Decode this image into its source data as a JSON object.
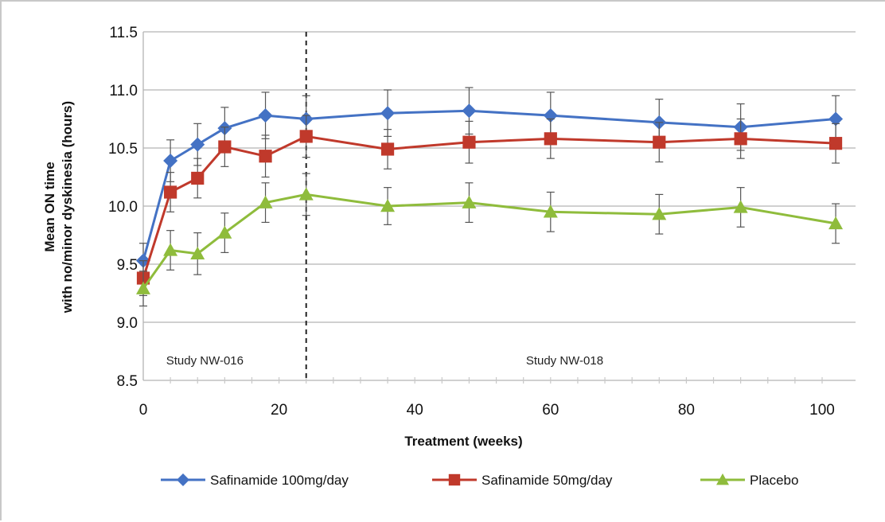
{
  "chart_data": {
    "type": "line",
    "xlabel": "Treatment (weeks)",
    "ylabel_line1": "Mean ON time",
    "ylabel_line2": "with no/minor dyskinesia (hours)",
    "xlim": [
      0,
      104
    ],
    "ylim": [
      8.5,
      11.5
    ],
    "xticks": [
      0,
      20,
      40,
      60,
      80,
      100
    ],
    "yticks": [
      8.5,
      9.0,
      9.5,
      10.0,
      10.5,
      11.0,
      11.5
    ],
    "ytick_labels": [
      "8.5",
      "9.0",
      "9.5",
      "10.0",
      "10.5",
      "11.0",
      "11.5"
    ],
    "grid": true,
    "divider_x": 24,
    "phases": [
      {
        "label": "Study NW-016",
        "x": 12
      },
      {
        "label": "Study NW-018",
        "x": 65
      }
    ],
    "x": [
      0,
      4,
      8,
      12,
      18,
      24,
      36,
      48,
      60,
      76,
      88,
      102
    ],
    "series": [
      {
        "name": "Safinamide 100mg/day",
        "color": "#4472c4",
        "marker": "diamond",
        "values": [
          9.53,
          10.39,
          10.53,
          10.67,
          10.78,
          10.75,
          10.8,
          10.82,
          10.78,
          10.72,
          10.68,
          10.75
        ],
        "errors": [
          0.15,
          0.18,
          0.18,
          0.18,
          0.2,
          0.2,
          0.2,
          0.2,
          0.2,
          0.2,
          0.2,
          0.2
        ]
      },
      {
        "name": "Safinamide 50mg/day",
        "color": "#c0392b",
        "marker": "square",
        "values": [
          9.38,
          10.12,
          10.24,
          10.51,
          10.43,
          10.6,
          10.49,
          10.55,
          10.58,
          10.55,
          10.58,
          10.54
        ],
        "errors": [
          0.15,
          0.17,
          0.17,
          0.17,
          0.18,
          0.18,
          0.17,
          0.18,
          0.17,
          0.17,
          0.17,
          0.17
        ]
      },
      {
        "name": "Placebo",
        "color": "#8fbc3c",
        "marker": "triangle",
        "values": [
          9.29,
          9.62,
          9.59,
          9.77,
          10.03,
          10.1,
          10.0,
          10.03,
          9.95,
          9.93,
          9.99,
          9.85
        ],
        "errors": [
          0.15,
          0.17,
          0.18,
          0.17,
          0.17,
          0.18,
          0.16,
          0.17,
          0.17,
          0.17,
          0.17,
          0.17
        ]
      }
    ]
  }
}
